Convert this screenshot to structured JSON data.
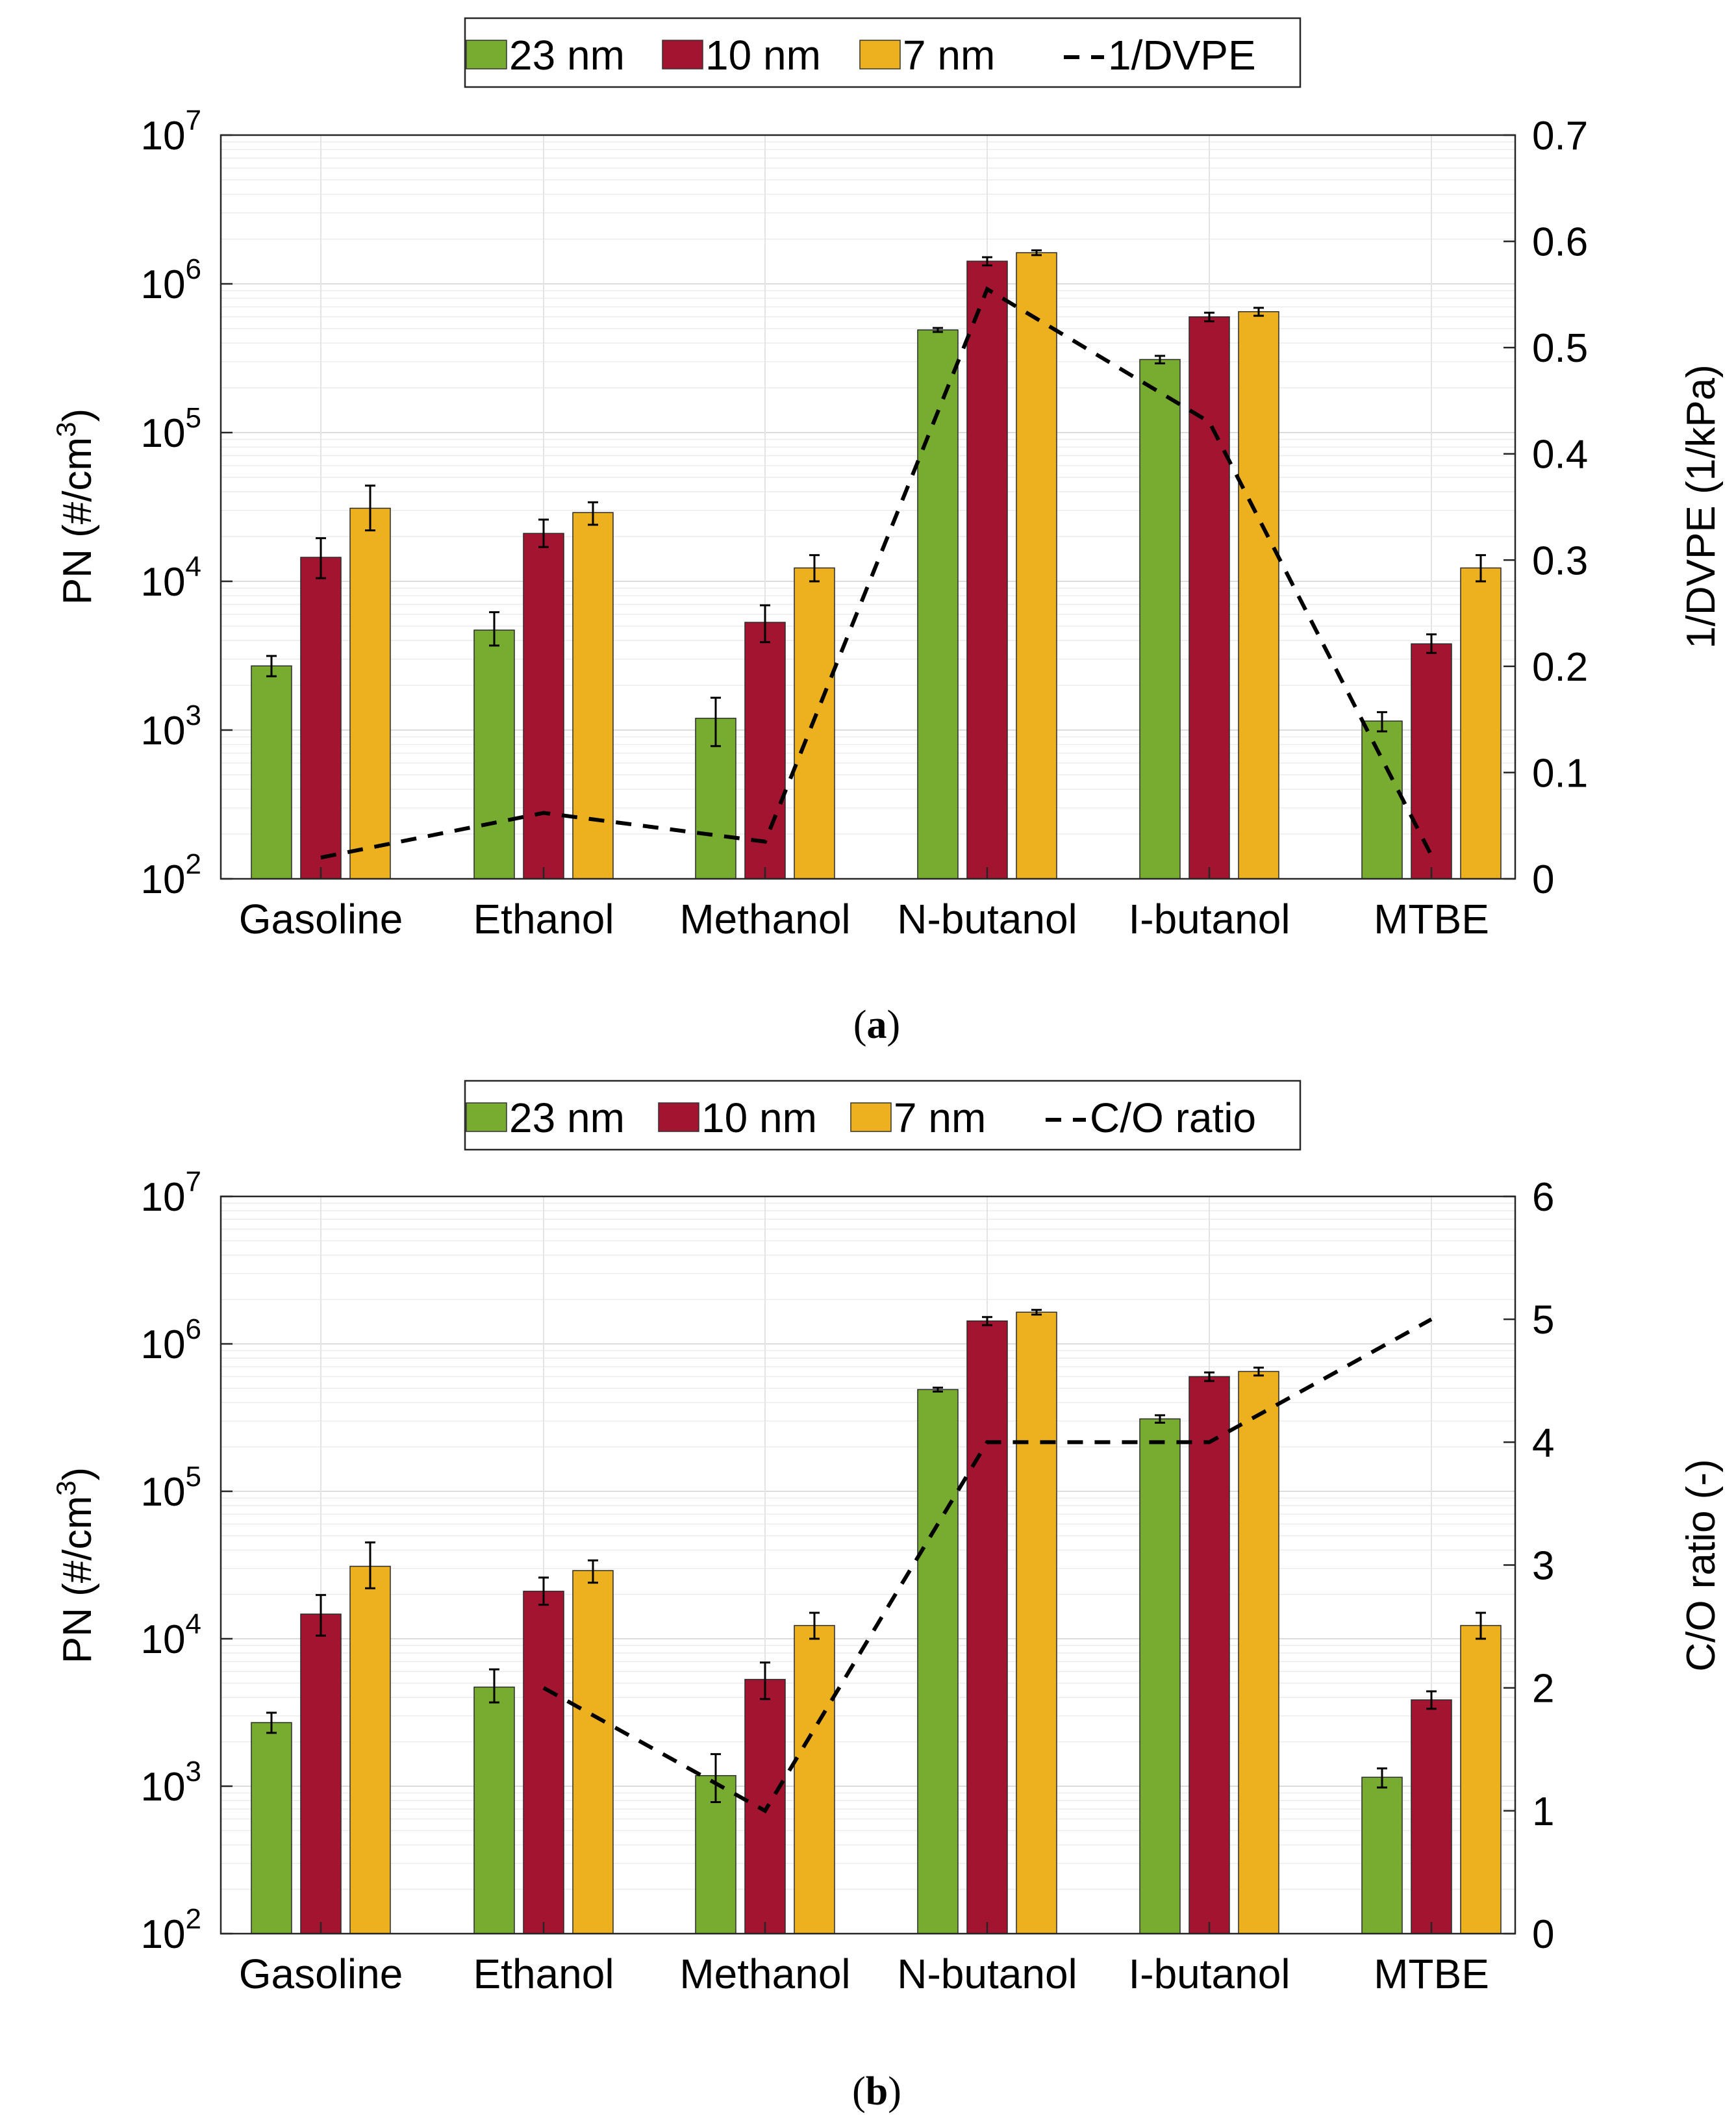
{
  "chart_data": [
    {
      "panel": "a",
      "type": "bar",
      "caption_label": "a",
      "categories": [
        "Gasoline",
        "Ethanol",
        "Methanol",
        "N-butanol",
        "I-butanol",
        "MTBE"
      ],
      "y_scale": "log",
      "ylim": [
        100,
        10000000
      ],
      "ylabel_main": "PN (#/cm",
      "ylabel_sup": "3",
      "ylabel_close": ")",
      "y_ticks": [
        {
          "value": 100,
          "base": "10",
          "exp": "2"
        },
        {
          "value": 1000,
          "base": "10",
          "exp": "3"
        },
        {
          "value": 10000,
          "base": "10",
          "exp": "4"
        },
        {
          "value": 100000,
          "base": "10",
          "exp": "5"
        },
        {
          "value": 1000000,
          "base": "10",
          "exp": "6"
        },
        {
          "value": 10000000,
          "base": "10",
          "exp": "7"
        }
      ],
      "series": [
        {
          "name": "23 nm",
          "color": "#77ac30",
          "values": [
            2700,
            4700,
            1200,
            490000,
            310000,
            1150
          ],
          "err_low": [
            2300,
            3700,
            780,
            475000,
            292000,
            980
          ],
          "err_high": [
            3150,
            6200,
            1650,
            505000,
            328000,
            1320
          ]
        },
        {
          "name": "10 nm",
          "color": "#a2142f",
          "values": [
            14500,
            21000,
            5300,
            1420000,
            600000,
            3800
          ],
          "err_low": [
            10500,
            17000,
            3900,
            1330000,
            560000,
            3300
          ],
          "err_high": [
            19500,
            26000,
            6900,
            1510000,
            640000,
            4400
          ]
        },
        {
          "name": "7 nm",
          "color": "#edb120",
          "values": [
            31000,
            29000,
            12300,
            1620000,
            650000,
            12300
          ],
          "err_low": [
            22000,
            24000,
            10000,
            1560000,
            610000,
            10000
          ],
          "err_high": [
            44000,
            34000,
            15000,
            1680000,
            690000,
            15000
          ]
        }
      ],
      "line": {
        "name": "1/DVPE",
        "values": [
          0.02,
          0.062,
          0.035,
          0.555,
          0.43,
          0.022
        ]
      },
      "y2lim": [
        0,
        0.7
      ],
      "y2_ticks": [
        "0",
        "0.1",
        "0.2",
        "0.3",
        "0.4",
        "0.5",
        "0.6",
        "0.7"
      ],
      "y2_tick_values": [
        0,
        0.1,
        0.2,
        0.3,
        0.4,
        0.5,
        0.6,
        0.7
      ],
      "y2label": "1/DVPE (1/kPa)",
      "legend_position": "top-center",
      "grid": true
    },
    {
      "panel": "b",
      "type": "bar",
      "caption_label": "b",
      "categories": [
        "Gasoline",
        "Ethanol",
        "Methanol",
        "N-butanol",
        "I-butanol",
        "MTBE"
      ],
      "y_scale": "log",
      "ylim": [
        100,
        10000000
      ],
      "ylabel_main": "PN (#/cm",
      "ylabel_sup": "3",
      "ylabel_close": ")",
      "y_ticks": [
        {
          "value": 100,
          "base": "10",
          "exp": "2"
        },
        {
          "value": 1000,
          "base": "10",
          "exp": "3"
        },
        {
          "value": 10000,
          "base": "10",
          "exp": "4"
        },
        {
          "value": 100000,
          "base": "10",
          "exp": "5"
        },
        {
          "value": 1000000,
          "base": "10",
          "exp": "6"
        },
        {
          "value": 10000000,
          "base": "10",
          "exp": "7"
        }
      ],
      "series": [
        {
          "name": "23 nm",
          "color": "#77ac30",
          "values": [
            2700,
            4700,
            1180,
            490000,
            310000,
            1150
          ],
          "err_low": [
            2300,
            3700,
            780,
            475000,
            292000,
            980
          ],
          "err_high": [
            3150,
            6200,
            1650,
            505000,
            328000,
            1320
          ]
        },
        {
          "name": "10 nm",
          "color": "#a2142f",
          "values": [
            14700,
            21000,
            5300,
            1430000,
            600000,
            3850
          ],
          "err_low": [
            10500,
            17000,
            3900,
            1340000,
            560000,
            3350
          ],
          "err_high": [
            19800,
            26000,
            6900,
            1520000,
            640000,
            4400
          ]
        },
        {
          "name": "7 nm",
          "color": "#edb120",
          "values": [
            31000,
            29000,
            12300,
            1640000,
            650000,
            12300
          ],
          "err_low": [
            22000,
            24000,
            10000,
            1580000,
            610000,
            10000
          ],
          "err_high": [
            45000,
            34000,
            15000,
            1700000,
            690000,
            15000
          ]
        }
      ],
      "line": {
        "name": "C/O ratio",
        "values": [
          null,
          2,
          1,
          4,
          4,
          5
        ]
      },
      "y2lim": [
        0,
        6
      ],
      "y2_ticks": [
        "0",
        "1",
        "2",
        "3",
        "4",
        "5",
        "6"
      ],
      "y2_tick_values": [
        0,
        1,
        2,
        3,
        4,
        5,
        6
      ],
      "y2label": "C/O ratio (-)",
      "legend_position": "top-center",
      "grid": true
    }
  ]
}
